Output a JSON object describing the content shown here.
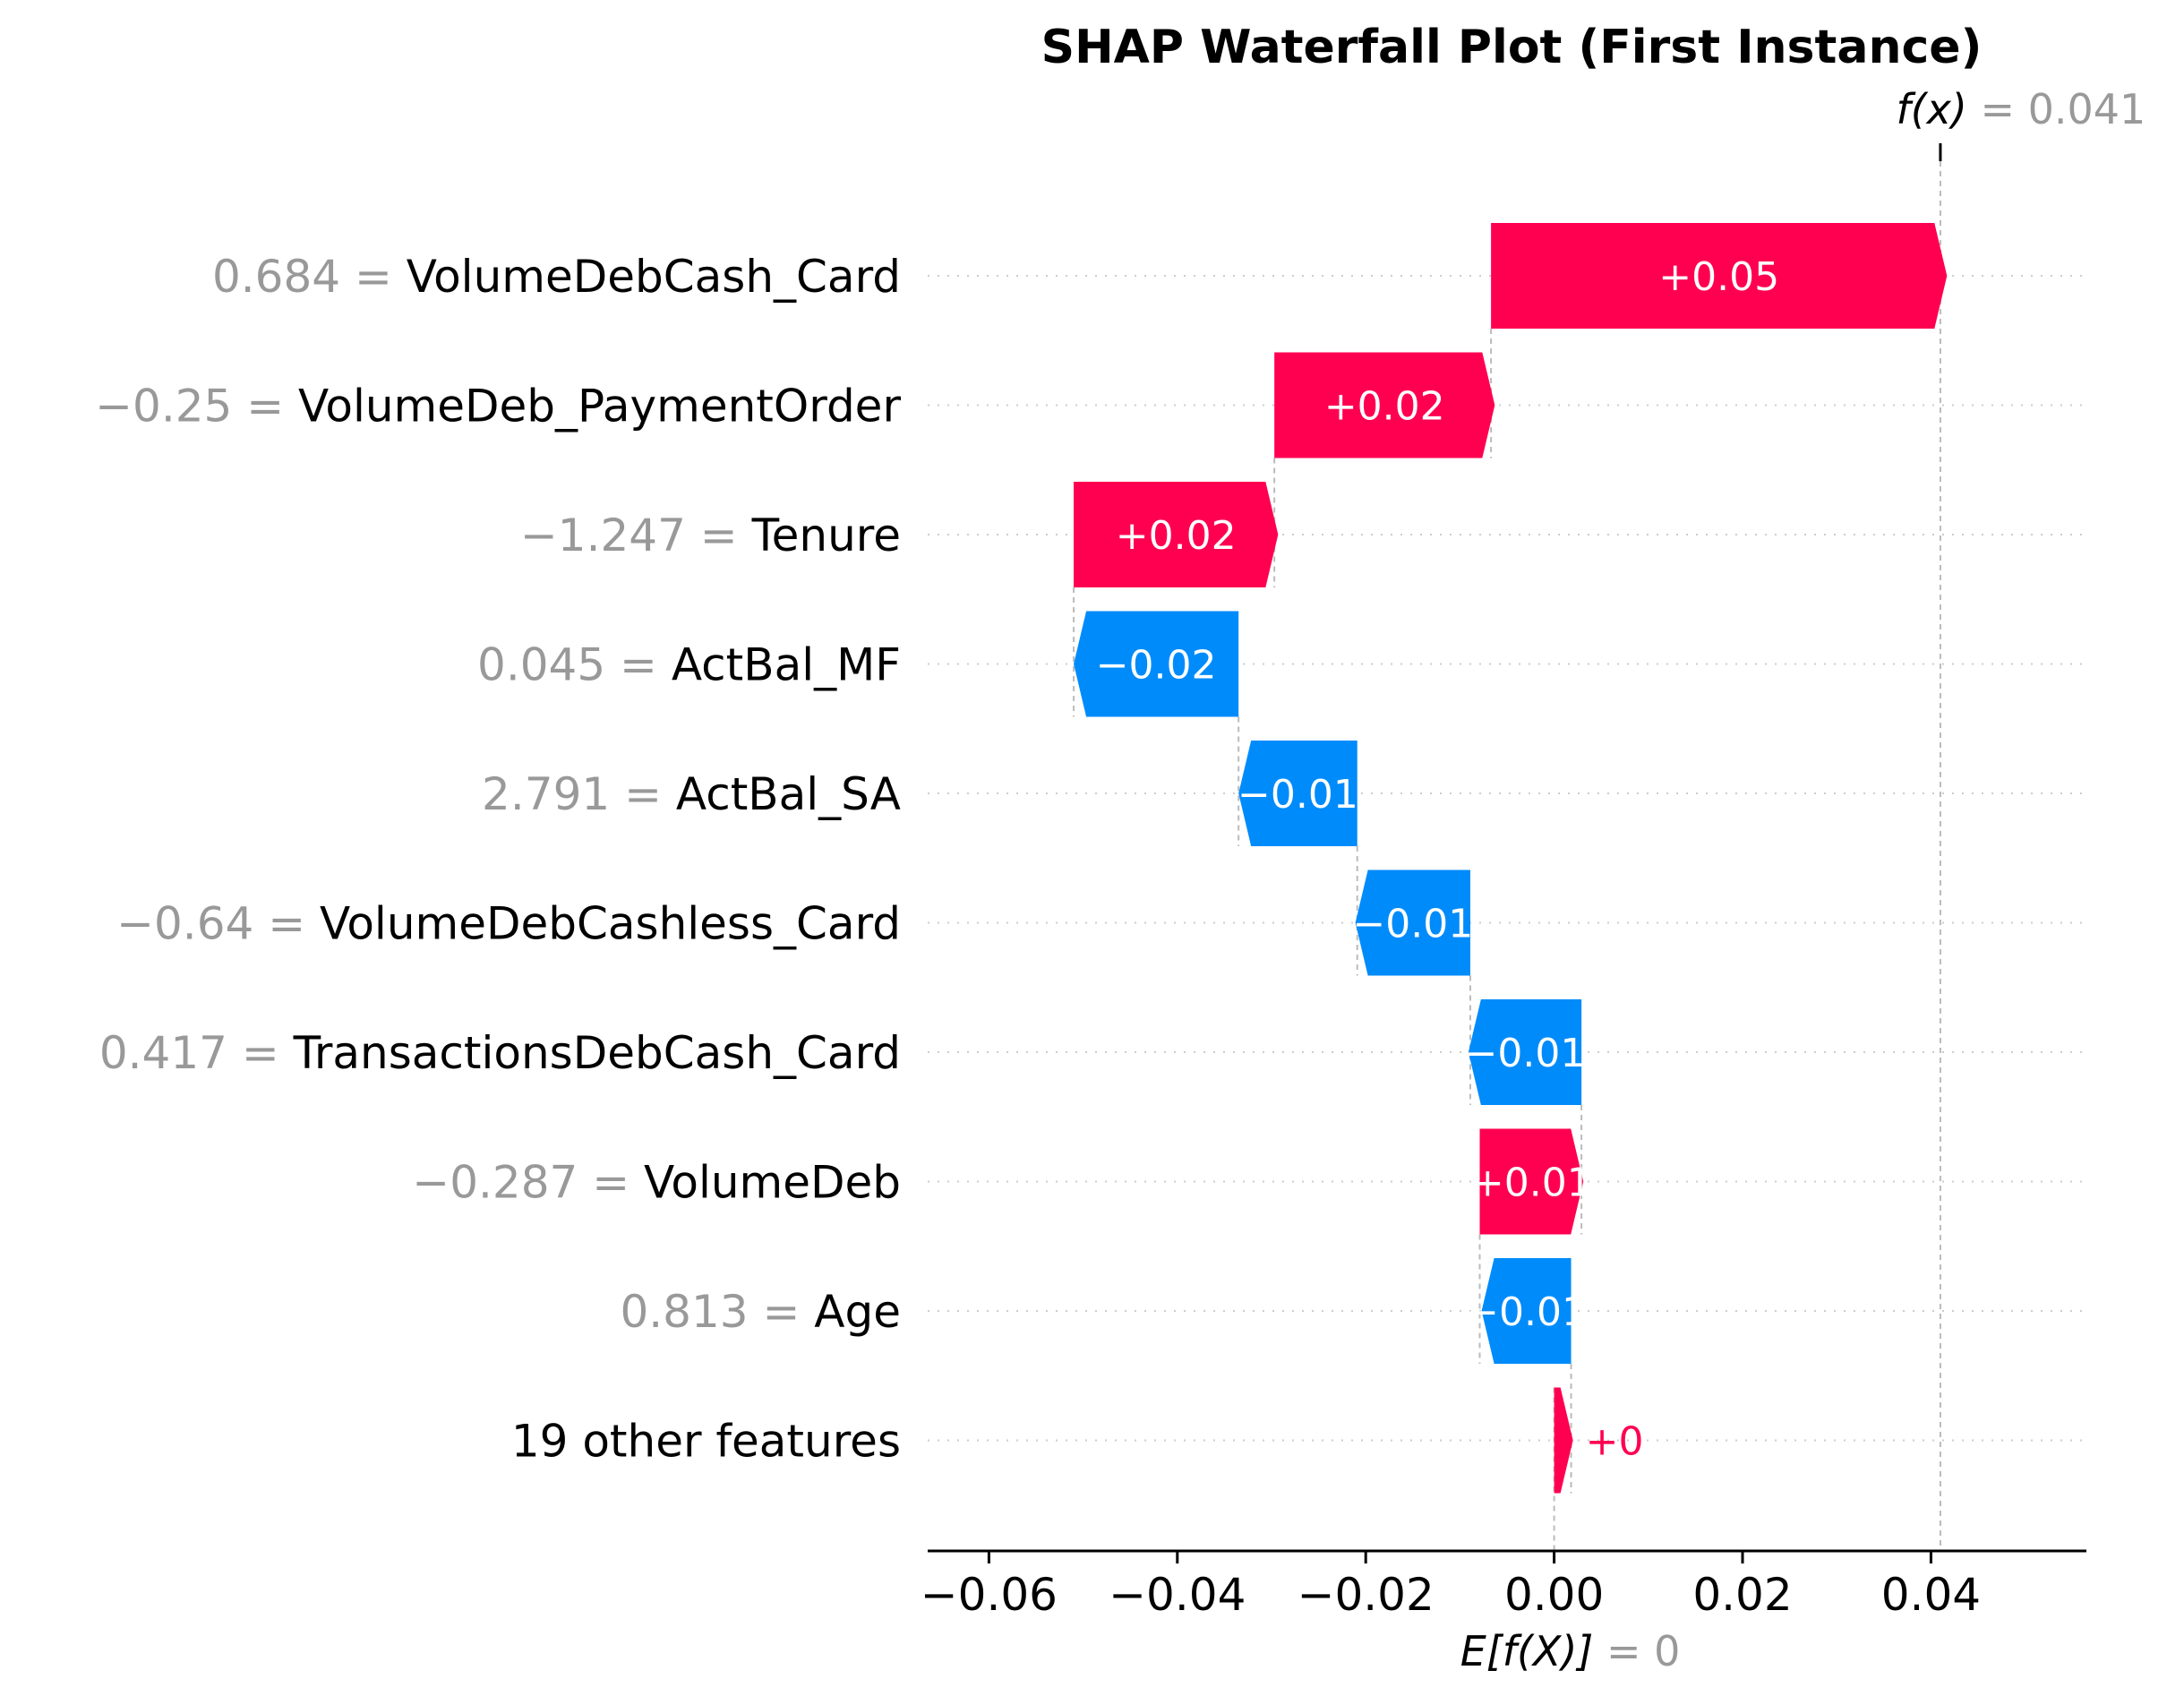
{
  "chart_data": {
    "type": "waterfall",
    "title": "SHAP Waterfall Plot (First Instance)",
    "base_value": 0,
    "base_label": "E[f(X)]",
    "base_value_text": "= 0",
    "output_value": 0.041,
    "output_label": "f(x)",
    "output_value_text": "= 0.041",
    "xlim": [
      -0.0665,
      0.0565
    ],
    "ticks": [
      -0.06,
      -0.04,
      -0.02,
      0.0,
      0.02,
      0.04
    ],
    "tick_labels": [
      "−0.06",
      "−0.04",
      "−0.02",
      "0.00",
      "0.02",
      "0.04"
    ],
    "colors": {
      "positive": "#ff0051",
      "negative": "#008bfb",
      "value_text": "#999999",
      "grid": "#cccccc"
    },
    "features": [
      {
        "value": "0.684",
        "name": "VolumeDebCash_Card",
        "start": -0.0067,
        "end": 0.0417,
        "label": "+0.05"
      },
      {
        "value": "−0.25",
        "name": "VolumeDeb_PaymentOrder",
        "start": -0.0297,
        "end": -0.0063,
        "label": "+0.02"
      },
      {
        "value": "−1.247",
        "name": "Tenure",
        "start": -0.051,
        "end": -0.0293,
        "label": "+0.02"
      },
      {
        "value": "0.045",
        "name": "ActBal_MF",
        "start": -0.0335,
        "end": -0.051,
        "label": "−0.02"
      },
      {
        "value": "2.791",
        "name": "ActBal_SA",
        "start": -0.0209,
        "end": -0.0335,
        "label": "−0.01"
      },
      {
        "value": "−0.64",
        "name": "VolumeDebCashless_Card",
        "start": -0.0089,
        "end": -0.0211,
        "label": "−0.01"
      },
      {
        "value": "0.417",
        "name": "TransactionsDebCash_Card",
        "start": 0.0029,
        "end": -0.0091,
        "label": "−0.01"
      },
      {
        "value": "−0.287",
        "name": "VolumeDeb",
        "start": -0.0079,
        "end": 0.0031,
        "label": "+0.01"
      },
      {
        "value": "0.813",
        "name": "Age",
        "start": 0.0018,
        "end": -0.0077,
        "label": "−0.01"
      },
      {
        "value": "",
        "name": "19 other features",
        "start": 0.0,
        "end": 0.002,
        "label": "+0"
      }
    ]
  }
}
